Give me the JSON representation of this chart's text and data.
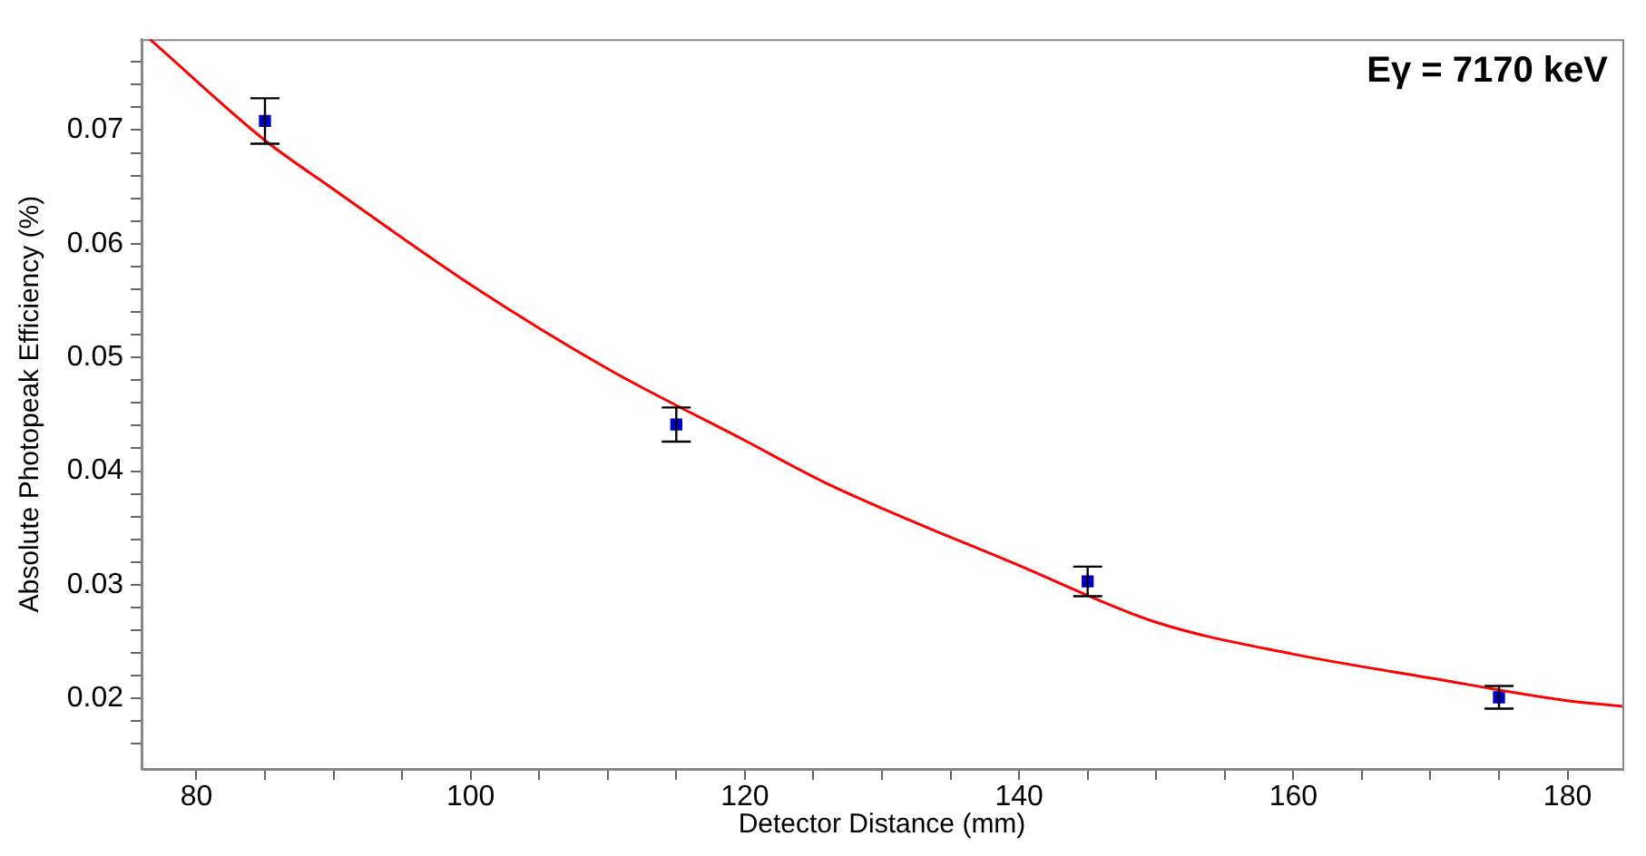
{
  "chart_data": {
    "type": "scatter",
    "xlabel": "Detector Distance (mm)",
    "ylabel": "Absolute Photopeak Efficiency (%)",
    "annotations": [
      "Eγ = 7170 keV"
    ],
    "xlim": [
      76,
      184
    ],
    "ylim": [
      0.0138,
      0.078
    ],
    "xticks": [
      80,
      {
        "value": 85,
        "label": null
      },
      {
        "value": 90,
        "label": null
      },
      {
        "value": 95,
        "label": null
      },
      100,
      {
        "value": 105,
        "label": null
      },
      {
        "value": 110,
        "label": null
      },
      {
        "value": 115,
        "label": null
      },
      120,
      {
        "value": 125,
        "label": null
      },
      {
        "value": 130,
        "label": null
      },
      {
        "value": 135,
        "label": null
      },
      140,
      {
        "value": 145,
        "label": null
      },
      {
        "value": 150,
        "label": null
      },
      {
        "value": 155,
        "label": null
      },
      160,
      {
        "value": 165,
        "label": null
      },
      {
        "value": 170,
        "label": null
      },
      {
        "value": 175,
        "label": null
      },
      180
    ],
    "yticks": [
      {
        "value": 0.016,
        "label": null
      },
      {
        "value": 0.018,
        "label": null
      },
      0.02,
      {
        "value": 0.022,
        "label": null
      },
      {
        "value": 0.024,
        "label": null
      },
      {
        "value": 0.026,
        "label": null
      },
      {
        "value": 0.028,
        "label": null
      },
      0.03,
      {
        "value": 0.032,
        "label": null
      },
      {
        "value": 0.034,
        "label": null
      },
      {
        "value": 0.036,
        "label": null
      },
      {
        "value": 0.038,
        "label": null
      },
      0.04,
      {
        "value": 0.042,
        "label": null
      },
      {
        "value": 0.044,
        "label": null
      },
      {
        "value": 0.046,
        "label": null
      },
      {
        "value": 0.048,
        "label": null
      },
      0.05,
      {
        "value": 0.052,
        "label": null
      },
      {
        "value": 0.054,
        "label": null
      },
      {
        "value": 0.056,
        "label": null
      },
      {
        "value": 0.058,
        "label": null
      },
      0.06,
      {
        "value": 0.062,
        "label": null
      },
      {
        "value": 0.064,
        "label": null
      },
      {
        "value": 0.066,
        "label": null
      },
      {
        "value": 0.068,
        "label": null
      },
      0.07,
      {
        "value": 0.072,
        "label": null
      },
      {
        "value": 0.074,
        "label": null
      },
      {
        "value": 0.076,
        "label": null
      }
    ],
    "grid": false,
    "legend": false,
    "series": [
      {
        "type": "scatter",
        "color": "#0000cc",
        "marker": "square",
        "x": [
          85,
          115,
          145,
          175
        ],
        "values": [
          0.0708,
          0.0441,
          0.0303,
          0.0201
        ],
        "errors": [
          0.002,
          0.0015,
          0.0013,
          0.001
        ]
      },
      {
        "type": "line",
        "color": "#ff0000",
        "marker": "none",
        "x": [
          76.6,
          85,
          90,
          100,
          110,
          120,
          126,
          140,
          150,
          160,
          170,
          180,
          184
        ],
        "values": [
          0.078,
          0.0691,
          0.0648,
          0.0564,
          0.049,
          0.0427,
          0.0389,
          0.0317,
          0.0267,
          0.0239,
          0.0218,
          0.0198,
          0.0193
        ]
      }
    ]
  }
}
